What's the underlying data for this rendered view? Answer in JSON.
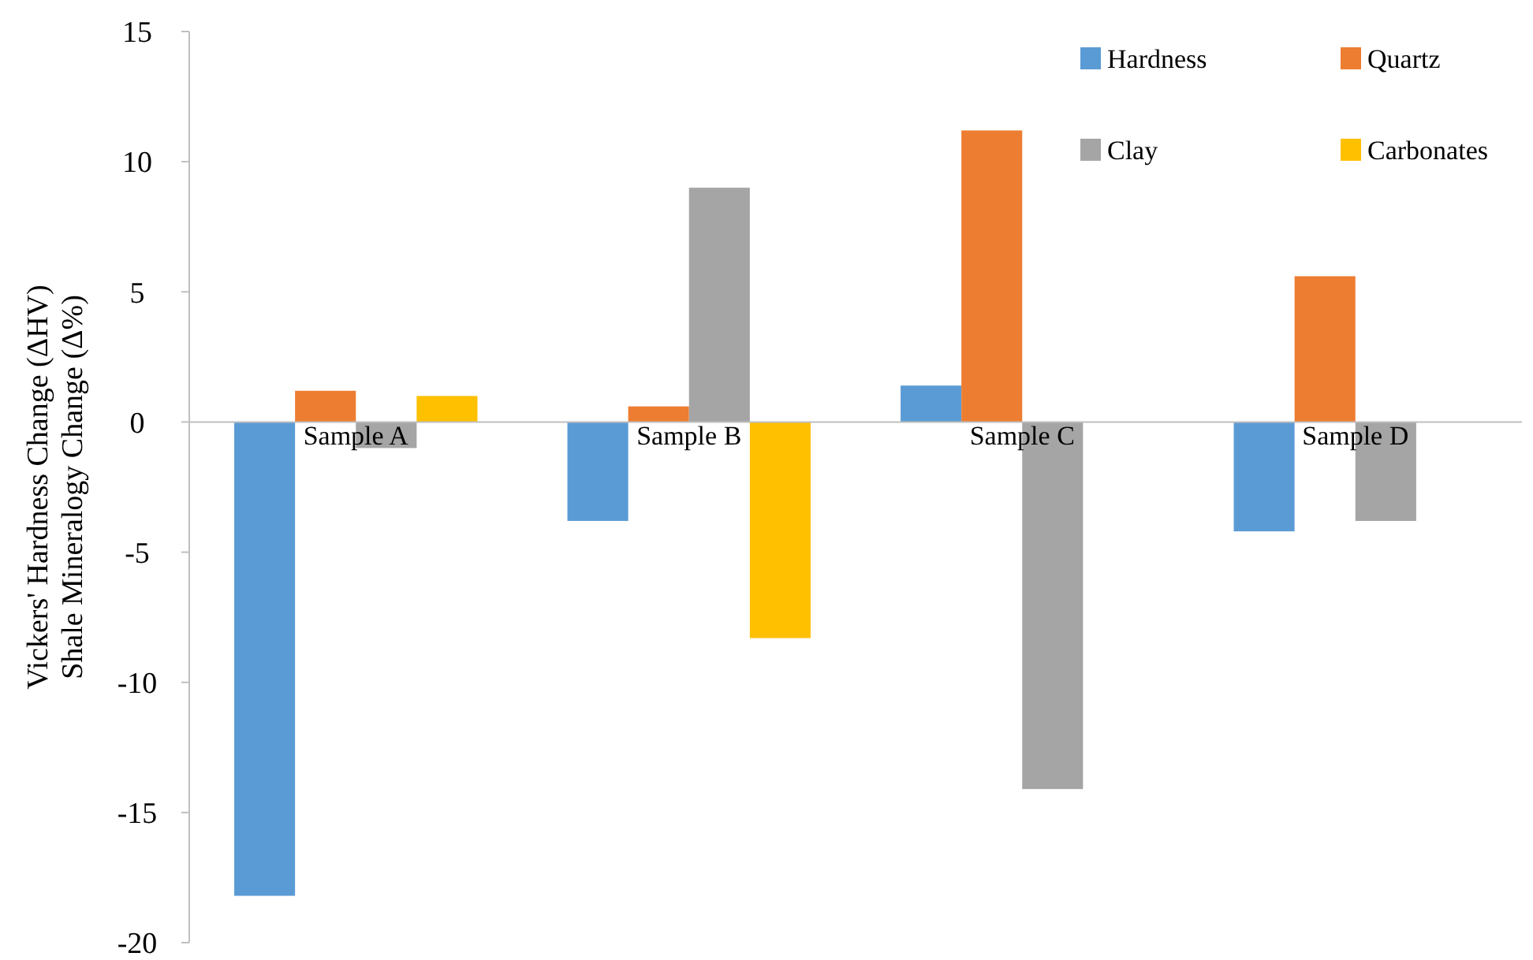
{
  "chart_data": {
    "type": "bar",
    "ylabel": "Vickers' Hardness Change (ΔHV)\nShale Mineralogy Change (Δ%)",
    "categories": [
      "Sample A",
      "Sample B",
      "Sample C",
      "Sample D"
    ],
    "series": [
      {
        "name": "Hardness",
        "color": "#5b9bd5",
        "values": [
          -18.2,
          -3.8,
          1.4,
          -4.2
        ]
      },
      {
        "name": "Quartz",
        "color": "#ed7d31",
        "values": [
          1.2,
          0.6,
          11.2,
          5.6
        ]
      },
      {
        "name": "Clay",
        "color": "#a5a5a5",
        "values": [
          -1.0,
          9.0,
          -14.1,
          -3.8
        ]
      },
      {
        "name": "Carbonates",
        "color": "#ffc000",
        "values": [
          1.0,
          -8.3,
          null,
          null
        ]
      }
    ],
    "ylim": [
      -20,
      15
    ],
    "yticks": [
      -20,
      -15,
      -10,
      -5,
      0,
      5,
      10,
      15
    ],
    "grid": false,
    "legend": "top right"
  }
}
